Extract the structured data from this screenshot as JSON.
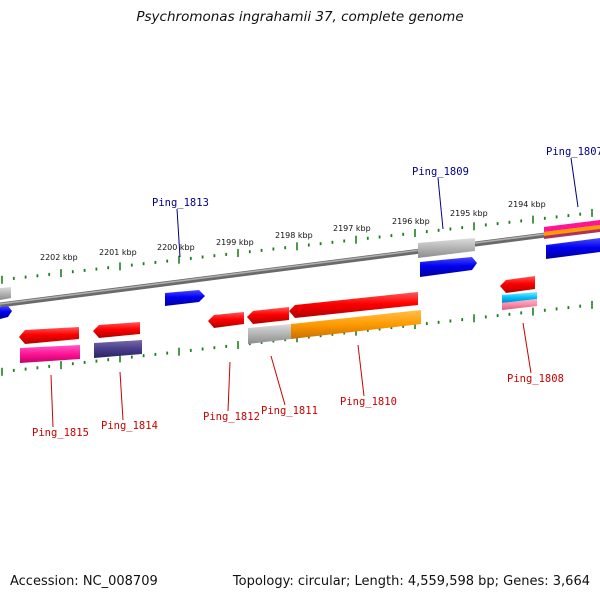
{
  "title": "Psychromonas ingrahamii 37, complete genome",
  "footer": {
    "accession": "Accession: NC_008709",
    "summary": "Topology: circular; Length: 4,559,598 bp; Genes: 3,664"
  },
  "colors": {
    "backbone": "#7f7f7f",
    "tick": "#1f7f1f",
    "forward_label": "#00008b",
    "reverse_label": "#cc0000"
  },
  "scale_labels": [
    "2202 kbp",
    "2201 kbp",
    "2200 kbp",
    "2199 kbp",
    "2198 kbp",
    "2197 kbp",
    "2196 kbp",
    "2195 kbp",
    "2194 kbp"
  ],
  "gene_labels": [
    {
      "name": "Ping_1813",
      "strand": "forward"
    },
    {
      "name": "Ping_1809",
      "strand": "forward"
    },
    {
      "name": "Ping_1807",
      "strand": "forward"
    },
    {
      "name": "Ping_1815",
      "strand": "reverse"
    },
    {
      "name": "Ping_1814",
      "strand": "reverse"
    },
    {
      "name": "Ping_1812",
      "strand": "reverse"
    },
    {
      "name": "Ping_1811",
      "strand": "reverse"
    },
    {
      "name": "Ping_1810",
      "strand": "reverse"
    },
    {
      "name": "Ping_1808",
      "strand": "reverse"
    }
  ]
}
